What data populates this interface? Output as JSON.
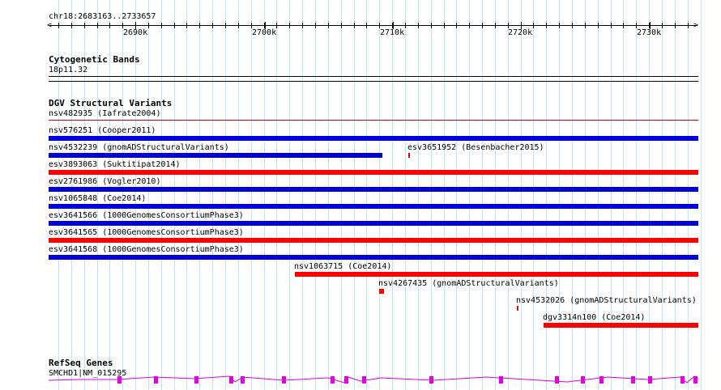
{
  "ruler": {
    "location": "chr18:2683163..2733657",
    "ticks": [
      "2690k",
      "2700k",
      "2710k",
      "2720k",
      "2730k"
    ]
  },
  "cytobands": {
    "title": "Cytogenetic Bands",
    "band": "18p11.32"
  },
  "dgv": {
    "title": "DGV Structural Variants",
    "variants": [
      {
        "id": "nsv482935",
        "label": "nsv482935 (Iafrate2004)",
        "color": "#dd0000"
      },
      {
        "id": "nsv576251",
        "label": "nsv576251 (Cooper2011)",
        "color": "#0000dd"
      },
      {
        "id": "nsv4532239",
        "label": "nsv4532239 (gnomADStructuralVariants)",
        "color": "#0000dd"
      },
      {
        "id": "esv3651952",
        "label": "esv3651952 (Besenbacher2015)",
        "color": "#dd0000"
      },
      {
        "id": "esv3893063",
        "label": "esv3893063 (Suktitipat2014)",
        "color": "#ff0000"
      },
      {
        "id": "esv2761986",
        "label": "esv2761986 (Vogler2010)",
        "color": "#0000dd"
      },
      {
        "id": "nsv1065848",
        "label": "nsv1065848 (Coe2014)",
        "color": "#0000dd"
      },
      {
        "id": "esv3641566",
        "label": "esv3641566 (1000GenomesConsortiumPhase3)",
        "color": "#0000dd"
      },
      {
        "id": "esv3641565",
        "label": "esv3641565 (1000GenomesConsortiumPhase3)",
        "color": "#ff0000"
      },
      {
        "id": "esv3641568",
        "label": "esv3641568 (1000GenomesConsortiumPhase3)",
        "color": "#0000dd"
      },
      {
        "id": "nsv1063715",
        "label": "nsv1063715 (Coe2014)",
        "color": "#ff0000"
      },
      {
        "id": "nsv4267435",
        "label": "nsv4267435 (gnomADStructuralVariants)",
        "color": "#ff0000"
      },
      {
        "id": "nsv4532026",
        "label": "nsv4532026 (gnomADStructuralVariants)",
        "color": "#ff0000"
      },
      {
        "id": "dgv3314n100",
        "label": "dgv3314n100 (Coe2014)",
        "color": "#ff0000"
      }
    ]
  },
  "refseq": {
    "title": "RefSeq Genes",
    "gene": "SMCHD1|NM_015295",
    "color": "#e000e0"
  }
}
